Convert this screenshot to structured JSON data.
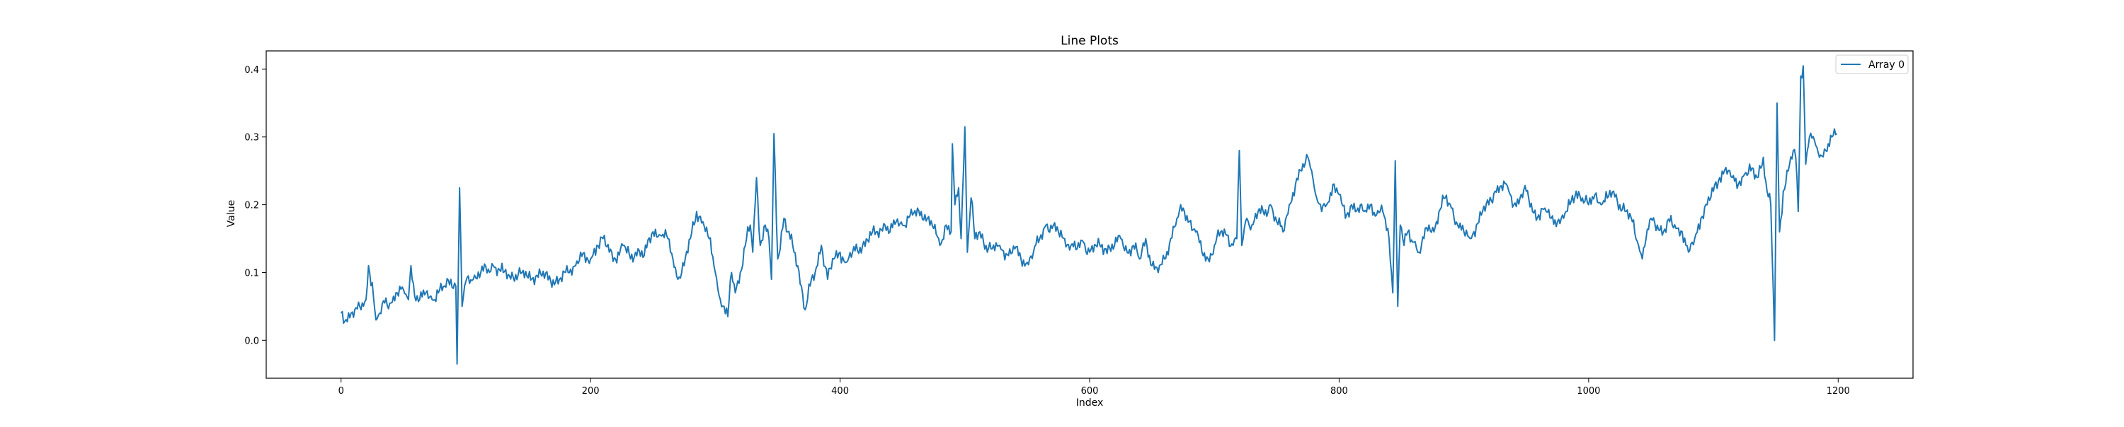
{
  "chart_data": {
    "type": "line",
    "title": "Line Plots",
    "xlabel": "Index",
    "ylabel": "Value",
    "xlim": [
      -60,
      1260
    ],
    "ylim": [
      -0.056,
      0.427
    ],
    "xticks": [
      0,
      200,
      400,
      600,
      800,
      1000,
      1200
    ],
    "yticks": [
      0.0,
      0.1,
      0.2,
      0.3,
      0.4
    ],
    "xtick_labels": [
      "0",
      "200",
      "400",
      "600",
      "800",
      "1000",
      "1200"
    ],
    "ytick_labels": [
      "0.0",
      "0.1",
      "0.2",
      "0.3",
      "0.4"
    ],
    "grid": false,
    "legend_position": "top-right",
    "series": [
      {
        "name": "Array 0",
        "color": "#1f77b4",
        "keypoints": [
          [
            0,
            0.04
          ],
          [
            3,
            0.028
          ],
          [
            8,
            0.04
          ],
          [
            12,
            0.048
          ],
          [
            16,
            0.045
          ],
          [
            20,
            0.06
          ],
          [
            22,
            0.11
          ],
          [
            25,
            0.085
          ],
          [
            28,
            0.03
          ],
          [
            31,
            0.04
          ],
          [
            35,
            0.055
          ],
          [
            40,
            0.055
          ],
          [
            45,
            0.07
          ],
          [
            50,
            0.075
          ],
          [
            54,
            0.06
          ],
          [
            56,
            0.11
          ],
          [
            59,
            0.065
          ],
          [
            63,
            0.06
          ],
          [
            68,
            0.07
          ],
          [
            73,
            0.06
          ],
          [
            78,
            0.07
          ],
          [
            83,
            0.08
          ],
          [
            88,
            0.09
          ],
          [
            92,
            0.08
          ],
          [
            93,
            -0.035
          ],
          [
            95,
            0.225
          ],
          [
            97,
            0.05
          ],
          [
            99,
            0.08
          ],
          [
            102,
            0.095
          ],
          [
            106,
            0.09
          ],
          [
            112,
            0.1
          ],
          [
            118,
            0.105
          ],
          [
            122,
            0.11
          ],
          [
            130,
            0.1
          ],
          [
            135,
            0.095
          ],
          [
            145,
            0.1
          ],
          [
            150,
            0.092
          ],
          [
            160,
            0.098
          ],
          [
            168,
            0.088
          ],
          [
            175,
            0.09
          ],
          [
            182,
            0.1
          ],
          [
            188,
            0.11
          ],
          [
            192,
            0.13
          ],
          [
            196,
            0.115
          ],
          [
            200,
            0.12
          ],
          [
            205,
            0.14
          ],
          [
            210,
            0.15
          ],
          [
            215,
            0.13
          ],
          [
            220,
            0.12
          ],
          [
            226,
            0.14
          ],
          [
            232,
            0.12
          ],
          [
            238,
            0.135
          ],
          [
            243,
            0.125
          ],
          [
            250,
            0.16
          ],
          [
            256,
            0.155
          ],
          [
            262,
            0.15
          ],
          [
            266,
            0.12
          ],
          [
            270,
            0.09
          ],
          [
            275,
            0.11
          ],
          [
            280,
            0.15
          ],
          [
            285,
            0.19
          ],
          [
            290,
            0.175
          ],
          [
            295,
            0.15
          ],
          [
            300,
            0.1
          ],
          [
            304,
            0.06
          ],
          [
            307,
            0.05
          ],
          [
            310,
            0.035
          ],
          [
            313,
            0.1
          ],
          [
            316,
            0.07
          ],
          [
            320,
            0.1
          ],
          [
            325,
            0.15
          ],
          [
            328,
            0.17
          ],
          [
            330,
            0.13
          ],
          [
            333,
            0.24
          ],
          [
            336,
            0.14
          ],
          [
            340,
            0.17
          ],
          [
            343,
            0.15
          ],
          [
            345,
            0.09
          ],
          [
            347,
            0.305
          ],
          [
            350,
            0.12
          ],
          [
            355,
            0.18
          ],
          [
            358,
            0.16
          ],
          [
            362,
            0.14
          ],
          [
            366,
            0.11
          ],
          [
            369,
            0.08
          ],
          [
            372,
            0.045
          ],
          [
            376,
            0.08
          ],
          [
            380,
            0.1
          ],
          [
            385,
            0.14
          ],
          [
            390,
            0.09
          ],
          [
            395,
            0.12
          ],
          [
            400,
            0.13
          ],
          [
            405,
            0.115
          ],
          [
            410,
            0.13
          ],
          [
            418,
            0.14
          ],
          [
            425,
            0.155
          ],
          [
            430,
            0.16
          ],
          [
            436,
            0.17
          ],
          [
            440,
            0.16
          ],
          [
            445,
            0.175
          ],
          [
            450,
            0.17
          ],
          [
            458,
            0.185
          ],
          [
            465,
            0.19
          ],
          [
            470,
            0.18
          ],
          [
            475,
            0.165
          ],
          [
            480,
            0.14
          ],
          [
            485,
            0.17
          ],
          [
            489,
            0.16
          ],
          [
            490,
            0.29
          ],
          [
            492,
            0.2
          ],
          [
            495,
            0.225
          ],
          [
            497,
            0.15
          ],
          [
            500,
            0.315
          ],
          [
            502,
            0.13
          ],
          [
            505,
            0.21
          ],
          [
            508,
            0.15
          ],
          [
            512,
            0.16
          ],
          [
            517,
            0.14
          ],
          [
            522,
            0.135
          ],
          [
            528,
            0.14
          ],
          [
            535,
            0.125
          ],
          [
            540,
            0.135
          ],
          [
            545,
            0.12
          ],
          [
            550,
            0.115
          ],
          [
            555,
            0.13
          ],
          [
            560,
            0.15
          ],
          [
            565,
            0.17
          ],
          [
            570,
            0.165
          ],
          [
            575,
            0.16
          ],
          [
            580,
            0.15
          ],
          [
            585,
            0.14
          ],
          [
            590,
            0.135
          ],
          [
            595,
            0.145
          ],
          [
            600,
            0.13
          ],
          [
            605,
            0.14
          ],
          [
            612,
            0.135
          ],
          [
            620,
            0.14
          ],
          [
            625,
            0.15
          ],
          [
            630,
            0.13
          ],
          [
            635,
            0.14
          ],
          [
            640,
            0.12
          ],
          [
            645,
            0.15
          ],
          [
            650,
            0.11
          ],
          [
            655,
            0.1
          ],
          [
            660,
            0.12
          ],
          [
            665,
            0.15
          ],
          [
            670,
            0.18
          ],
          [
            675,
            0.195
          ],
          [
            680,
            0.175
          ],
          [
            685,
            0.16
          ],
          [
            690,
            0.13
          ],
          [
            695,
            0.12
          ],
          [
            700,
            0.14
          ],
          [
            705,
            0.16
          ],
          [
            710,
            0.155
          ],
          [
            715,
            0.14
          ],
          [
            718,
            0.15
          ],
          [
            720,
            0.28
          ],
          [
            722,
            0.14
          ],
          [
            726,
            0.18
          ],
          [
            730,
            0.17
          ],
          [
            735,
            0.19
          ],
          [
            740,
            0.185
          ],
          [
            745,
            0.2
          ],
          [
            750,
            0.175
          ],
          [
            755,
            0.16
          ],
          [
            760,
            0.2
          ],
          [
            765,
            0.23
          ],
          [
            770,
            0.25
          ],
          [
            775,
            0.27
          ],
          [
            778,
            0.25
          ],
          [
            782,
            0.21
          ],
          [
            786,
            0.19
          ],
          [
            790,
            0.2
          ],
          [
            795,
            0.23
          ],
          [
            800,
            0.215
          ],
          [
            805,
            0.18
          ],
          [
            810,
            0.2
          ],
          [
            815,
            0.195
          ],
          [
            820,
            0.19
          ],
          [
            825,
            0.2
          ],
          [
            830,
            0.185
          ],
          [
            835,
            0.19
          ],
          [
            840,
            0.15
          ],
          [
            843,
            0.07
          ],
          [
            845,
            0.265
          ],
          [
            847,
            0.05
          ],
          [
            849,
            0.17
          ],
          [
            852,
            0.14
          ],
          [
            855,
            0.16
          ],
          [
            860,
            0.145
          ],
          [
            864,
            0.13
          ],
          [
            868,
            0.15
          ],
          [
            872,
            0.17
          ],
          [
            876,
            0.16
          ],
          [
            880,
            0.19
          ],
          [
            885,
            0.21
          ],
          [
            890,
            0.195
          ],
          [
            895,
            0.17
          ],
          [
            900,
            0.16
          ],
          [
            905,
            0.15
          ],
          [
            910,
            0.17
          ],
          [
            915,
            0.19
          ],
          [
            920,
            0.2
          ],
          [
            925,
            0.22
          ],
          [
            930,
            0.228
          ],
          [
            935,
            0.227
          ],
          [
            940,
            0.2
          ],
          [
            945,
            0.21
          ],
          [
            950,
            0.22
          ],
          [
            955,
            0.19
          ],
          [
            960,
            0.185
          ],
          [
            965,
            0.195
          ],
          [
            970,
            0.18
          ],
          [
            975,
            0.175
          ],
          [
            980,
            0.18
          ],
          [
            985,
            0.2
          ],
          [
            990,
            0.22
          ],
          [
            995,
            0.21
          ],
          [
            1000,
            0.2
          ],
          [
            1005,
            0.215
          ],
          [
            1010,
            0.2
          ],
          [
            1015,
            0.21
          ],
          [
            1020,
            0.22
          ],
          [
            1025,
            0.2
          ],
          [
            1030,
            0.19
          ],
          [
            1035,
            0.175
          ],
          [
            1040,
            0.14
          ],
          [
            1043,
            0.12
          ],
          [
            1046,
            0.15
          ],
          [
            1050,
            0.18
          ],
          [
            1055,
            0.17
          ],
          [
            1060,
            0.16
          ],
          [
            1065,
            0.175
          ],
          [
            1070,
            0.165
          ],
          [
            1075,
            0.16
          ],
          [
            1078,
            0.14
          ],
          [
            1080,
            0.13
          ],
          [
            1085,
            0.15
          ],
          [
            1090,
            0.18
          ],
          [
            1095,
            0.2
          ],
          [
            1100,
            0.22
          ],
          [
            1105,
            0.24
          ],
          [
            1110,
            0.255
          ],
          [
            1115,
            0.24
          ],
          [
            1120,
            0.23
          ],
          [
            1125,
            0.245
          ],
          [
            1130,
            0.25
          ],
          [
            1135,
            0.24
          ],
          [
            1140,
            0.27
          ],
          [
            1143,
            0.22
          ],
          [
            1146,
            0.2
          ],
          [
            1149,
            0.0
          ],
          [
            1151,
            0.35
          ],
          [
            1153,
            0.16
          ],
          [
            1156,
            0.22
          ],
          [
            1160,
            0.25
          ],
          [
            1164,
            0.28
          ],
          [
            1166,
            0.27
          ],
          [
            1168,
            0.19
          ],
          [
            1170,
            0.39
          ],
          [
            1172,
            0.405
          ],
          [
            1174,
            0.26
          ],
          [
            1177,
            0.3
          ],
          [
            1181,
            0.295
          ],
          [
            1185,
            0.27
          ],
          [
            1190,
            0.28
          ],
          [
            1195,
            0.3
          ],
          [
            1199,
            0.305
          ]
        ]
      }
    ]
  }
}
